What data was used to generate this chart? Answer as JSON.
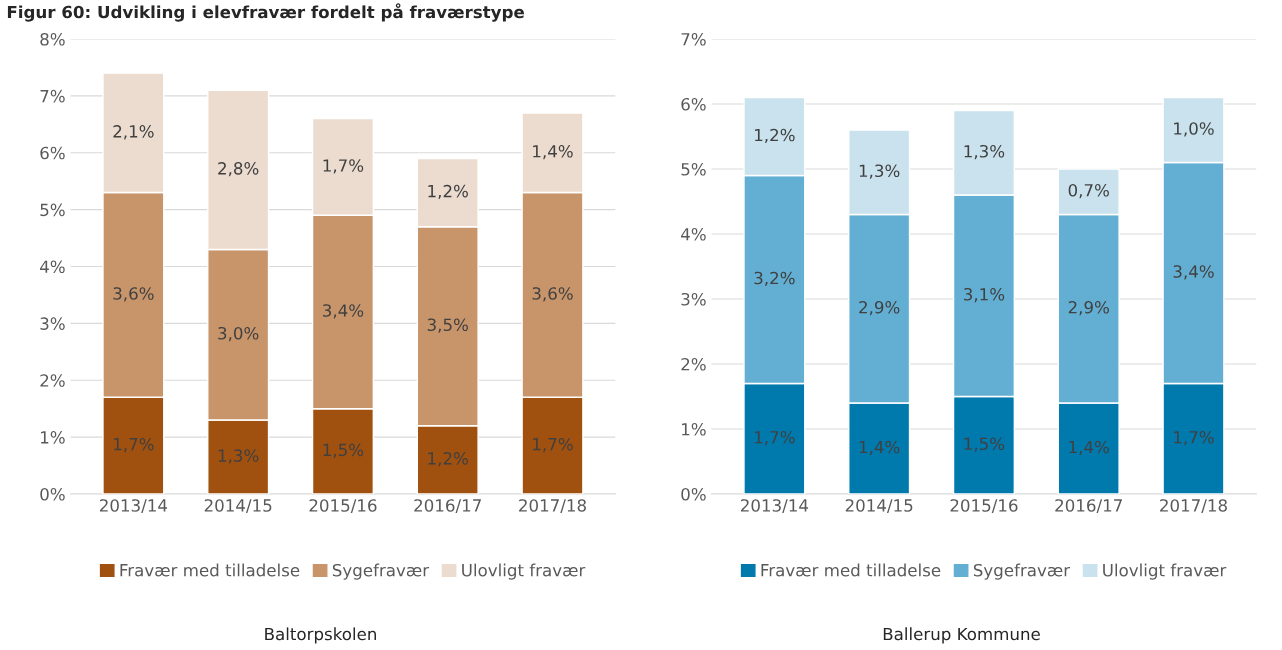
{
  "chart_data": [
    {
      "type": "bar",
      "stacked": true,
      "title": "Figur 60: Udvikling i elevfravær fordelt på fraværstype",
      "categories": [
        "2013/14",
        "2014/15",
        "2015/16",
        "2016/17",
        "2017/18"
      ],
      "series": [
        {
          "name": "Fravær med tilladelse",
          "color": "#a0500f",
          "values": [
            1.7,
            1.3,
            1.5,
            1.2,
            1.7
          ],
          "value_labels": [
            "1,7%",
            "1,3%",
            "1,5%",
            "1,2%",
            "1,7%"
          ]
        },
        {
          "name": "Sygefravær",
          "color": "#c8956b",
          "values": [
            3.6,
            3.0,
            3.4,
            3.5,
            3.6
          ],
          "value_labels": [
            "3,6%",
            "3,0%",
            "3,4%",
            "3,5%",
            "3,6%"
          ]
        },
        {
          "name": "Ulovligt fravær",
          "color": "#ecdccf",
          "values": [
            2.1,
            2.8,
            1.7,
            1.2,
            1.4
          ],
          "value_labels": [
            "2,1%",
            "2,8%",
            "1,7%",
            "1,2%",
            "1,4%"
          ]
        }
      ],
      "ylim": [
        0,
        8
      ],
      "yticks": [
        {
          "value": 0,
          "label": "0%"
        },
        {
          "value": 1,
          "label": "1%"
        },
        {
          "value": 2,
          "label": "2%"
        },
        {
          "value": 3,
          "label": "3%"
        },
        {
          "value": 4,
          "label": "4%"
        },
        {
          "value": 5,
          "label": "5%"
        },
        {
          "value": 6,
          "label": "6%"
        },
        {
          "value": 7,
          "label": "7%"
        },
        {
          "value": 8,
          "label": "8%"
        }
      ],
      "grid": "y",
      "legend": "bottom",
      "annotations": [
        "Baltorpskolen"
      ]
    },
    {
      "type": "bar",
      "stacked": true,
      "categories": [
        "2013/14",
        "2014/15",
        "2015/16",
        "2016/17",
        "2017/18"
      ],
      "series": [
        {
          "name": "Fravær med tilladelse",
          "color": "#0079ad",
          "values": [
            1.7,
            1.4,
            1.5,
            1.4,
            1.7
          ],
          "value_labels": [
            "1,7%",
            "1,4%",
            "1,5%",
            "1,4%",
            "1,7%"
          ]
        },
        {
          "name": "Sygefravær",
          "color": "#63afd3",
          "values": [
            3.2,
            2.9,
            3.1,
            2.9,
            3.4
          ],
          "value_labels": [
            "3,2%",
            "2,9%",
            "3,1%",
            "2,9%",
            "3,4%"
          ]
        },
        {
          "name": "Ulovligt fravær",
          "color": "#c9e2ee",
          "values": [
            1.2,
            1.3,
            1.3,
            0.7,
            1.0
          ],
          "value_labels": [
            "1,2%",
            "1,3%",
            "1,3%",
            "0,7%",
            "1,0%"
          ]
        }
      ],
      "ylim": [
        0,
        7
      ],
      "yticks": [
        {
          "value": 0,
          "label": "0%"
        },
        {
          "value": 1,
          "label": "1%"
        },
        {
          "value": 2,
          "label": "2%"
        },
        {
          "value": 3,
          "label": "3%"
        },
        {
          "value": 4,
          "label": "4%"
        },
        {
          "value": 5,
          "label": "5%"
        },
        {
          "value": 6,
          "label": "6%"
        },
        {
          "value": 7,
          "label": "7%"
        }
      ],
      "grid": "y",
      "legend": "bottom",
      "annotations": [
        "Ballerup Kommune"
      ]
    }
  ]
}
